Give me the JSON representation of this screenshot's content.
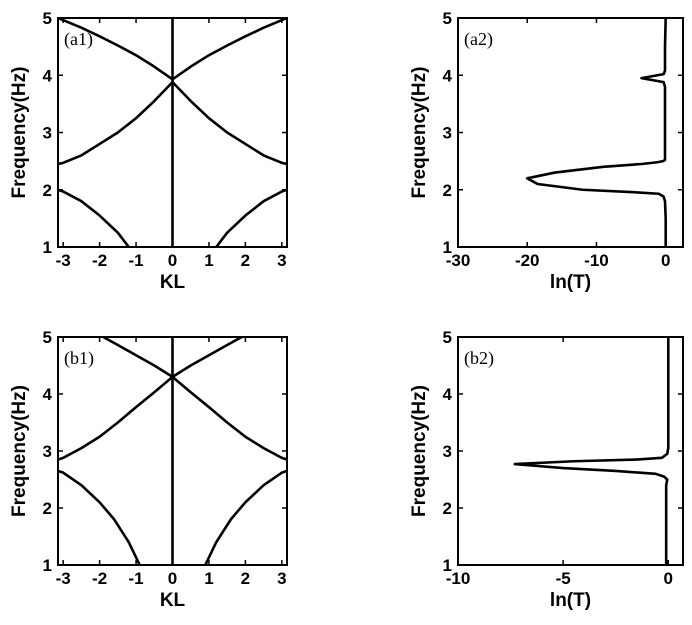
{
  "chart_data": [
    {
      "type": "line",
      "panel_label": "(a1)",
      "xlabel": "KL",
      "ylabel": "Frequency(Hz)",
      "xlim": [
        -3.14159,
        3.14159
      ],
      "ylim": [
        1,
        5
      ],
      "xticks": [
        "-3",
        "-2",
        "-1",
        "0",
        "1",
        "2",
        "3"
      ],
      "yticks": [
        "1",
        "2",
        "3",
        "4",
        "5"
      ],
      "series": [
        {
          "x": [
            -1.2,
            -1.5,
            -2.0,
            -2.5,
            -3.0,
            -3.14159
          ],
          "y": [
            1.0,
            1.25,
            1.55,
            1.8,
            1.97,
            2.0
          ]
        },
        {
          "x": [
            1.2,
            1.5,
            2.0,
            2.5,
            3.0,
            3.14159
          ],
          "y": [
            1.0,
            1.25,
            1.55,
            1.8,
            1.97,
            2.0
          ]
        },
        {
          "x": [
            -3.14159,
            -3.0,
            -2.5,
            -2.0,
            -1.5,
            -1.0,
            -0.5,
            0.0,
            0.5,
            1.0,
            1.5,
            2.0,
            2.5,
            3.0,
            3.14159
          ],
          "y": [
            2.45,
            2.47,
            2.6,
            2.8,
            3.0,
            3.25,
            3.55,
            3.88,
            3.55,
            3.25,
            3.0,
            2.8,
            2.6,
            2.47,
            2.45
          ]
        },
        {
          "x": [
            -3.14159,
            -2.5,
            -2.0,
            -1.5,
            -1.0,
            -0.5,
            0.0,
            0.5,
            1.0,
            1.5,
            2.0,
            2.5,
            3.14159
          ],
          "y": [
            5.0,
            4.83,
            4.68,
            4.52,
            4.35,
            4.15,
            3.93,
            4.15,
            4.35,
            4.52,
            4.68,
            4.83,
            5.0
          ]
        },
        {
          "x": [
            0,
            0
          ],
          "y": [
            1,
            5
          ]
        }
      ]
    },
    {
      "type": "line",
      "panel_label": "(a2)",
      "xlabel": "ln(T)",
      "ylabel": "Frequency(Hz)",
      "xlim": [
        -30,
        2.5
      ],
      "ylim": [
        1,
        5
      ],
      "xticks": [
        "-30",
        "-20",
        "-10",
        "0"
      ],
      "yticks": [
        "1",
        "2",
        "3",
        "4",
        "5"
      ],
      "series": [
        {
          "x": [
            0,
            0,
            -0.1,
            -0.3,
            -1.0,
            -5.0,
            -12.0,
            -18.5,
            -20.0,
            -16.0,
            -9.0,
            -3.5,
            -1.2,
            -0.4,
            -0.1,
            -0.1,
            -0.1,
            -0.3,
            -3.5,
            -0.3,
            -0.1,
            -0.1,
            0,
            0
          ],
          "y": [
            1.0,
            1.5,
            1.8,
            1.88,
            1.93,
            1.96,
            2.0,
            2.1,
            2.2,
            2.3,
            2.4,
            2.45,
            2.48,
            2.5,
            2.52,
            3.0,
            3.8,
            3.88,
            3.95,
            4.02,
            4.08,
            4.5,
            5.0,
            5.0
          ]
        }
      ]
    },
    {
      "type": "line",
      "panel_label": "(b1)",
      "xlabel": "KL",
      "ylabel": "Frequency(Hz)",
      "xlim": [
        -3.14159,
        3.14159
      ],
      "ylim": [
        1,
        5
      ],
      "xticks": [
        "-3",
        "-2",
        "-1",
        "0",
        "1",
        "2",
        "3"
      ],
      "yticks": [
        "1",
        "2",
        "3",
        "4",
        "5"
      ],
      "series": [
        {
          "x": [
            -0.9,
            -1.2,
            -1.6,
            -2.0,
            -2.5,
            -3.0,
            -3.14159
          ],
          "y": [
            1.0,
            1.4,
            1.8,
            2.1,
            2.4,
            2.62,
            2.65
          ]
        },
        {
          "x": [
            0.9,
            1.2,
            1.6,
            2.0,
            2.5,
            3.0,
            3.14159
          ],
          "y": [
            1.0,
            1.4,
            1.8,
            2.1,
            2.4,
            2.62,
            2.65
          ]
        },
        {
          "x": [
            -3.14159,
            -3.0,
            -2.5,
            -2.0,
            -1.5,
            -1.0,
            -0.5,
            0.0,
            0.5,
            1.0,
            1.5,
            2.0,
            2.5,
            3.0,
            3.14159
          ],
          "y": [
            2.85,
            2.88,
            3.05,
            3.25,
            3.5,
            3.77,
            4.03,
            4.3,
            4.03,
            3.77,
            3.5,
            3.25,
            3.05,
            2.88,
            2.85
          ]
        },
        {
          "x": [
            -1.9,
            -1.5,
            -1.0,
            -0.5,
            0.0,
            0.5,
            1.0,
            1.5,
            1.9
          ],
          "y": [
            5.0,
            4.86,
            4.68,
            4.5,
            4.3,
            4.5,
            4.68,
            4.86,
            5.0
          ]
        },
        {
          "x": [
            0,
            0
          ],
          "y": [
            1,
            5
          ]
        }
      ]
    },
    {
      "type": "line",
      "panel_label": "(b2)",
      "xlabel": "ln(T)",
      "ylabel": "Frequency(Hz)",
      "xlim": [
        -10,
        0.7
      ],
      "ylim": [
        1,
        5
      ],
      "xticks": [
        "-10",
        "-5",
        "0"
      ],
      "yticks": [
        "1",
        "2",
        "3",
        "4",
        "5"
      ],
      "series": [
        {
          "x": [
            -0.1,
            -0.1,
            -0.05,
            -0.2,
            -0.6,
            -2.5,
            -5.0,
            -7.3,
            -4.5,
            -1.5,
            -0.3,
            -0.05,
            0,
            0,
            0
          ],
          "y": [
            1.0,
            2.4,
            2.5,
            2.55,
            2.6,
            2.65,
            2.7,
            2.77,
            2.82,
            2.85,
            2.88,
            2.95,
            3.05,
            4.0,
            5.0
          ]
        }
      ]
    }
  ]
}
